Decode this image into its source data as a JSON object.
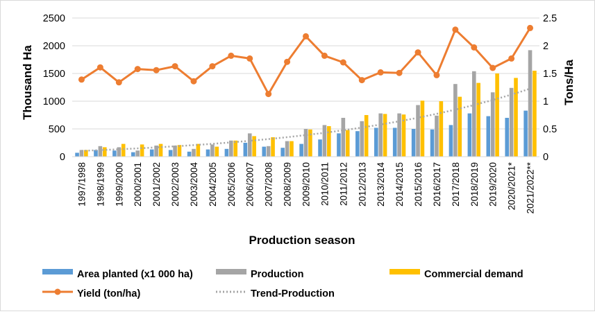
{
  "chart_data": {
    "type": "bar",
    "xlabel": "Production season",
    "ylabel": "Thousand Ha",
    "y2label": "Tons/Ha",
    "ylim": [
      0,
      2500
    ],
    "yticks": [
      "0",
      "500",
      "1000",
      "1500",
      "2000",
      "2500"
    ],
    "y2lim": [
      0,
      2.5
    ],
    "y2ticks": [
      "0",
      "0.5",
      "1",
      "1.5",
      "2",
      "2.5"
    ],
    "grid": true,
    "legend_position": "bottom",
    "categories": [
      "1997/1998",
      "1998/1999",
      "1999/2000",
      "2000/2001",
      "2001/2002",
      "2002/2003",
      "2003/2004",
      "2004/2005",
      "2005/2006",
      "2006/2007",
      "2007/2008",
      "2008/2009",
      "2009/2010",
      "2010/2011",
      "2011/2012",
      "2012/2013",
      "2013/2014",
      "2014/2015",
      "2015/2016",
      "2016/2017",
      "2017/2018",
      "2018/2019",
      "2019/2020",
      "2020/2021*",
      "2021/2022**"
    ],
    "series": [
      {
        "name": "Area planted (x1 000 ha)",
        "type": "bar",
        "axis": "left",
        "color": "#5b9bd5",
        "values": [
          70,
          120,
          110,
          80,
          130,
          120,
          90,
          130,
          140,
          250,
          180,
          160,
          230,
          310,
          420,
          460,
          520,
          520,
          500,
          490,
          570,
          780,
          730,
          700,
          830
        ]
      },
      {
        "name": "Production",
        "type": "bar",
        "axis": "left",
        "color": "#a5a5a5",
        "values": [
          120,
          190,
          170,
          110,
          200,
          200,
          140,
          220,
          290,
          420,
          190,
          280,
          500,
          570,
          700,
          640,
          780,
          780,
          930,
          740,
          1310,
          1540,
          1160,
          1240,
          1920
        ]
      },
      {
        "name": "Commercial demand",
        "type": "bar",
        "axis": "left",
        "color": "#ffc000",
        "values": [
          120,
          170,
          230,
          220,
          230,
          210,
          230,
          180,
          290,
          370,
          350,
          280,
          490,
          550,
          480,
          750,
          770,
          760,
          1010,
          1000,
          1080,
          1330,
          1500,
          1420,
          1550
        ]
      },
      {
        "name": "Yield (ton/ha)",
        "type": "line",
        "axis": "right",
        "color": "#ed7d31",
        "values": [
          1.39,
          1.61,
          1.34,
          1.58,
          1.56,
          1.63,
          1.36,
          1.63,
          1.82,
          1.77,
          1.13,
          1.71,
          2.17,
          1.82,
          1.7,
          1.38,
          1.52,
          1.51,
          1.88,
          1.47,
          2.29,
          1.97,
          1.6,
          1.77,
          2.32
        ]
      },
      {
        "name": "Trend-Production",
        "type": "trendline",
        "axis": "left",
        "color": "#a5a5a5",
        "values": [
          105,
          118,
          133,
          149,
          167,
          186,
          208,
          231,
          257,
          286,
          317,
          351,
          389,
          430,
          476,
          525,
          579,
          638,
          702,
          772,
          848,
          931,
          1021,
          1119,
          1226
        ]
      }
    ]
  }
}
